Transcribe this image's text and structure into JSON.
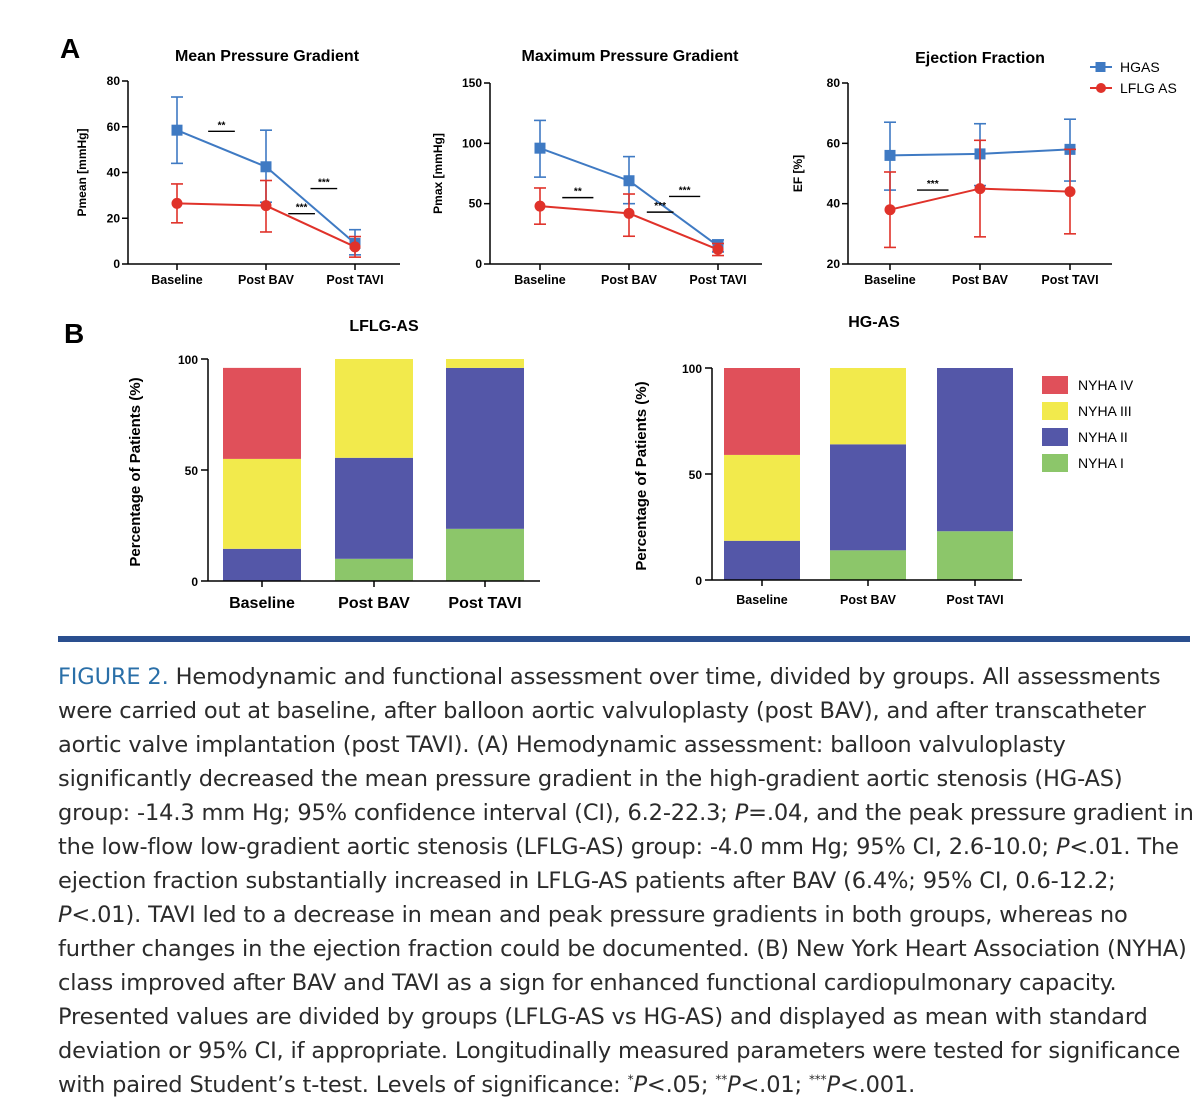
{
  "panel_letters": {
    "a": "A",
    "b": "B"
  },
  "colors": {
    "hgas": "#3f7ac3",
    "lflg": "#e0322a",
    "nyha_iv": "#e0505a",
    "nyha_iii": "#f2ea4c",
    "nyha_ii": "#5457a8",
    "nyha_i": "#8cc66a",
    "divider": "#2a4f8f",
    "caption_label": "#2a6fa8"
  },
  "chart_data": [
    {
      "id": "mean-gradient",
      "type": "line",
      "title": "Mean Pressure Gradient",
      "ylabel": "Pmean [mmHg]",
      "xlabel": "",
      "categories": [
        "Baseline",
        "Post BAV",
        "Post TAVI"
      ],
      "ylim": [
        0,
        80
      ],
      "yticks": [
        "0",
        "20",
        "40",
        "60",
        "80"
      ],
      "ytick_values": [
        0,
        20,
        40,
        60,
        80
      ],
      "series": [
        {
          "name": "HGAS",
          "values": [
            58.5,
            42.5,
            9
          ],
          "err_low": [
            44,
            27,
            4
          ],
          "err_high": [
            73,
            58.5,
            15
          ]
        },
        {
          "name": "LFLG AS",
          "values": [
            26.5,
            25.5,
            7.5
          ],
          "err_low": [
            18,
            14,
            3
          ],
          "err_high": [
            35,
            36.5,
            12
          ]
        }
      ],
      "significance": [
        {
          "label": "**",
          "x_from": 0.35,
          "x_to": 0.65,
          "y": 58
        },
        {
          "label": "***",
          "x_from": 1.25,
          "x_to": 1.55,
          "y": 22
        },
        {
          "label": "***",
          "x_from": 1.5,
          "x_to": 1.8,
          "y": 33
        }
      ]
    },
    {
      "id": "max-gradient",
      "type": "line",
      "title": "Maximum Pressure Gradient",
      "ylabel": "Pmax [mmHg]",
      "xlabel": "",
      "categories": [
        "Baseline",
        "Post BAV",
        "Post TAVI"
      ],
      "ylim": [
        0,
        150
      ],
      "yticks": [
        "0",
        "50",
        "100",
        "150"
      ],
      "ytick_values": [
        0,
        50,
        100,
        150
      ],
      "series": [
        {
          "name": "HGAS",
          "values": [
            96,
            69,
            15
          ],
          "err_low": [
            72,
            50,
            10
          ],
          "err_high": [
            119,
            89,
            20
          ]
        },
        {
          "name": "LFLG AS",
          "values": [
            48,
            42,
            12
          ],
          "err_low": [
            33,
            23,
            7
          ],
          "err_high": [
            63,
            58,
            17
          ]
        }
      ],
      "significance": [
        {
          "label": "**",
          "x_from": 0.25,
          "x_to": 0.6,
          "y": 55
        },
        {
          "label": "***",
          "x_from": 1.2,
          "x_to": 1.5,
          "y": 43
        },
        {
          "label": "***",
          "x_from": 1.45,
          "x_to": 1.8,
          "y": 56
        }
      ]
    },
    {
      "id": "ejection-fraction",
      "type": "line",
      "title": "Ejection Fraction",
      "ylabel": "EF [%]",
      "xlabel": "",
      "categories": [
        "Baseline",
        "Post BAV",
        "Post TAVI"
      ],
      "ylim": [
        20,
        80
      ],
      "yticks": [
        "20",
        "40",
        "60",
        "80"
      ],
      "ytick_values": [
        20,
        40,
        60,
        80
      ],
      "series": [
        {
          "name": "HGAS",
          "values": [
            56,
            56.5,
            58
          ],
          "err_low": [
            44.5,
            46,
            47.5
          ],
          "err_high": [
            67,
            66.5,
            68
          ]
        },
        {
          "name": "LFLG AS",
          "values": [
            38,
            45,
            44
          ],
          "err_low": [
            25.5,
            29,
            30
          ],
          "err_high": [
            50.5,
            61,
            58
          ]
        }
      ],
      "significance": [
        {
          "label": "***",
          "x_from": 0.3,
          "x_to": 0.65,
          "y": 44.5
        }
      ],
      "legend": [
        "HGAS",
        "LFLG AS"
      ],
      "legend_position": "top-right"
    },
    {
      "id": "nyha-lflg",
      "type": "bar",
      "stacked": true,
      "title": "LFLG-AS",
      "ylabel": "Percentage of Patients (%)",
      "xlabel": "",
      "categories": [
        "Baseline",
        "Post BAV",
        "Post TAVI"
      ],
      "ylim": [
        0,
        100
      ],
      "yticks": [
        "0",
        "50",
        "100"
      ],
      "ytick_values": [
        0,
        50,
        100
      ],
      "series": [
        {
          "name": "NYHA I",
          "values": [
            0,
            10,
            23.5
          ]
        },
        {
          "name": "NYHA II",
          "values": [
            14.5,
            45.5,
            72.5
          ]
        },
        {
          "name": "NYHA III",
          "values": [
            40.5,
            44.5,
            4
          ]
        },
        {
          "name": "NYHA IV",
          "values": [
            41,
            0,
            0
          ]
        }
      ]
    },
    {
      "id": "nyha-hg",
      "type": "bar",
      "stacked": true,
      "title": "HG-AS",
      "ylabel": "Percentage of Patients (%)",
      "xlabel": "",
      "categories": [
        "Baseline",
        "Post BAV",
        "Post TAVI"
      ],
      "ylim": [
        0,
        100
      ],
      "yticks": [
        "0",
        "50",
        "100"
      ],
      "ytick_values": [
        0,
        50,
        100
      ],
      "series": [
        {
          "name": "NYHA I",
          "values": [
            0,
            14,
            23
          ]
        },
        {
          "name": "NYHA II",
          "values": [
            18.5,
            50,
            77
          ]
        },
        {
          "name": "NYHA III",
          "values": [
            40.5,
            36,
            0
          ]
        },
        {
          "name": "NYHA IV",
          "values": [
            41,
            0,
            0
          ]
        }
      ],
      "legend": [
        "NYHA IV",
        "NYHA III",
        "NYHA II",
        "NYHA I"
      ],
      "legend_position": "right"
    }
  ],
  "caption": {
    "label": "FIGURE 2.",
    "parts": [
      {
        "t": " Hemodynamic and functional assessment over time, divided by groups. All assessments were carried out at baseline, after balloon aortic valvuloplasty (post BAV), and after transcatheter aortic valve implantation (post TAVI). (A) Hemodynamic assessment: balloon valvuloplasty significantly decreased the mean pressure gradient in the high-gradient aortic stenosis (HG-AS) group: -14.3 mm Hg; 95% confidence interval (CI), 6.2-22.3; "
      },
      {
        "t": "P",
        "i": true
      },
      {
        "t": "=.04, and the peak pressure gradient in the low-flow low-gradient aortic stenosis (LFLG-AS) group: -4.0 mm Hg; 95% CI, 2.6-10.0; "
      },
      {
        "t": "P",
        "i": true
      },
      {
        "t": "<.01. The ejection fraction substantially increased in LFLG-AS patients after BAV (6.4%; 95% CI, 0.6-12.2; "
      },
      {
        "t": "P",
        "i": true
      },
      {
        "t": "<.01). TAVI led to a decrease in mean and peak pressure gradients in both groups, whereas no further changes in the ejection fraction could be documented. (B) New York Heart Association (NYHA) class improved after BAV and TAVI as a sign for enhanced functional cardiopulmonary capacity. Presented values are divided by groups (LFLG-AS vs HG-AS) and displayed as mean with standard deviation or 95% CI, if appropriate. Longitudinally measured parameters were tested for significance with paired Student’s t-test. Levels of significance: "
      },
      {
        "t": "*",
        "sup": true
      },
      {
        "t": "P",
        "i": true
      },
      {
        "t": "<.05; "
      },
      {
        "t": "**",
        "sup": true
      },
      {
        "t": "P",
        "i": true
      },
      {
        "t": "<.01; "
      },
      {
        "t": "***",
        "sup": true
      },
      {
        "t": "P",
        "i": true
      },
      {
        "t": "<.001."
      }
    ]
  }
}
